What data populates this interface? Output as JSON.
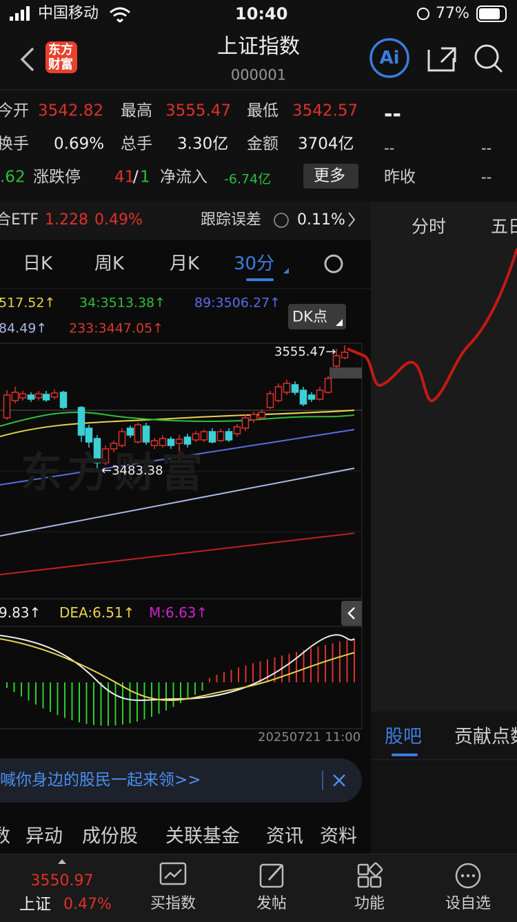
{
  "status": {
    "carrier": "中国移动",
    "time": "10:40",
    "battery": "77%"
  },
  "header": {
    "logo": [
      "东方",
      "财富"
    ],
    "title": "上证指数",
    "code": "000001",
    "ai": "Ai"
  },
  "quote": {
    "rows": [
      [
        "今开",
        "3542.82",
        "最高",
        "3555.47",
        "最低",
        "3542.57"
      ],
      [
        "换手",
        "0.69%",
        "总手",
        "3.30亿",
        "金额",
        "3704亿"
      ],
      [
        ".62",
        "涨跌停",
        "41",
        "/",
        "1",
        "净流入",
        "-6.74亿"
      ]
    ],
    "more": "更多"
  },
  "side": {
    "price": "--",
    "rows": [
      [
        "--",
        "--"
      ],
      [
        "昨收",
        "--"
      ]
    ],
    "tabs": [
      "分时",
      "五日"
    ],
    "bottom_tabs": [
      "股吧",
      "贡献点数"
    ]
  },
  "etf": {
    "name": "合ETF",
    "price": "1.228",
    "change": "0.49%",
    "tracking_label": "跟踪误差",
    "tracking_value": "0.11%"
  },
  "period_tabs": [
    "日K",
    "周K",
    "月K",
    "30分"
  ],
  "ma": [
    "517.52↑",
    "34:3513.38↑",
    "89:3506.27↑",
    "84.49↑",
    "233:3447.05↑"
  ],
  "dk": "DK点",
  "chart": {
    "high_label": "3555.47→",
    "low_label": "←3483.38",
    "watermark": "东方财富",
    "date": "20250721 11:00"
  },
  "macd": [
    "9.83↑",
    "DEA:6.51↑",
    "M:6.63↑"
  ],
  "banner": "喊你身边的股民一起来领>>",
  "sections": [
    "数",
    "异动",
    "成份股",
    "关联基金",
    "资讯",
    "资料"
  ],
  "bottom": {
    "price": "3550.97",
    "name": "上证",
    "change": "0.47%",
    "items": [
      "买指数",
      "发帖",
      "功能",
      "设自选"
    ]
  }
}
